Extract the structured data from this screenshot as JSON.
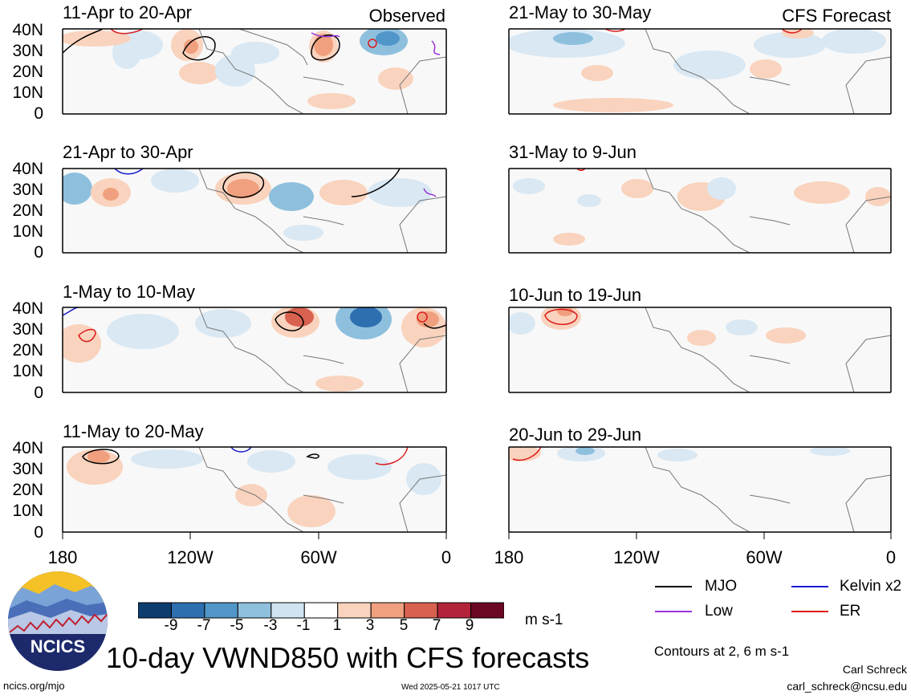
{
  "header": {
    "observed_label": "Observed",
    "forecast_label": "CFS Forecast"
  },
  "panels_left": [
    {
      "title": "11-Apr to 20-Apr"
    },
    {
      "title": "21-Apr to 30-Apr"
    },
    {
      "title": "1-May to 10-May"
    },
    {
      "title": "11-May to 20-May"
    }
  ],
  "panels_right": [
    {
      "title": "21-May to 30-May"
    },
    {
      "title": "31-May to 9-Jun"
    },
    {
      "title": "10-Jun to 19-Jun"
    },
    {
      "title": "20-Jun to 29-Jun"
    }
  ],
  "axes": {
    "lat_labels": [
      "40N",
      "30N",
      "20N",
      "10N",
      "0"
    ],
    "lon_labels": [
      "180",
      "120W",
      "60W",
      "0"
    ]
  },
  "colorbar": {
    "labels": [
      "-9",
      "-7",
      "-5",
      "-3",
      "-1",
      "1",
      "3",
      "5",
      "7",
      "9"
    ],
    "colors": [
      "#0d3d6e",
      "#2e6fb0",
      "#5196c9",
      "#8ec0de",
      "#cfe3f0",
      "#ffffff",
      "#f9d3bd",
      "#f0a07e",
      "#d8614f",
      "#b3233a",
      "#6b0722"
    ],
    "unit": "m s-1"
  },
  "legend": {
    "items": [
      {
        "label": "MJO",
        "color": "#000000"
      },
      {
        "label": "Kelvin x2",
        "color": "#1a1acc"
      },
      {
        "label": "Low",
        "color": "#9933dd"
      },
      {
        "label": "ER",
        "color": "#dd1a1a"
      }
    ],
    "contours_note": "Contours at 2, 6 m s-1"
  },
  "footer": {
    "main_title": "10-day VWND850 with CFS forecasts",
    "logo_text": "NCICS",
    "url": "ncics.org/mjo",
    "timestamp": "Wed 2025-05-21 1017 UTC",
    "author": "Carl Schreck",
    "email": "carl_schreck@ncsu.edu"
  }
}
